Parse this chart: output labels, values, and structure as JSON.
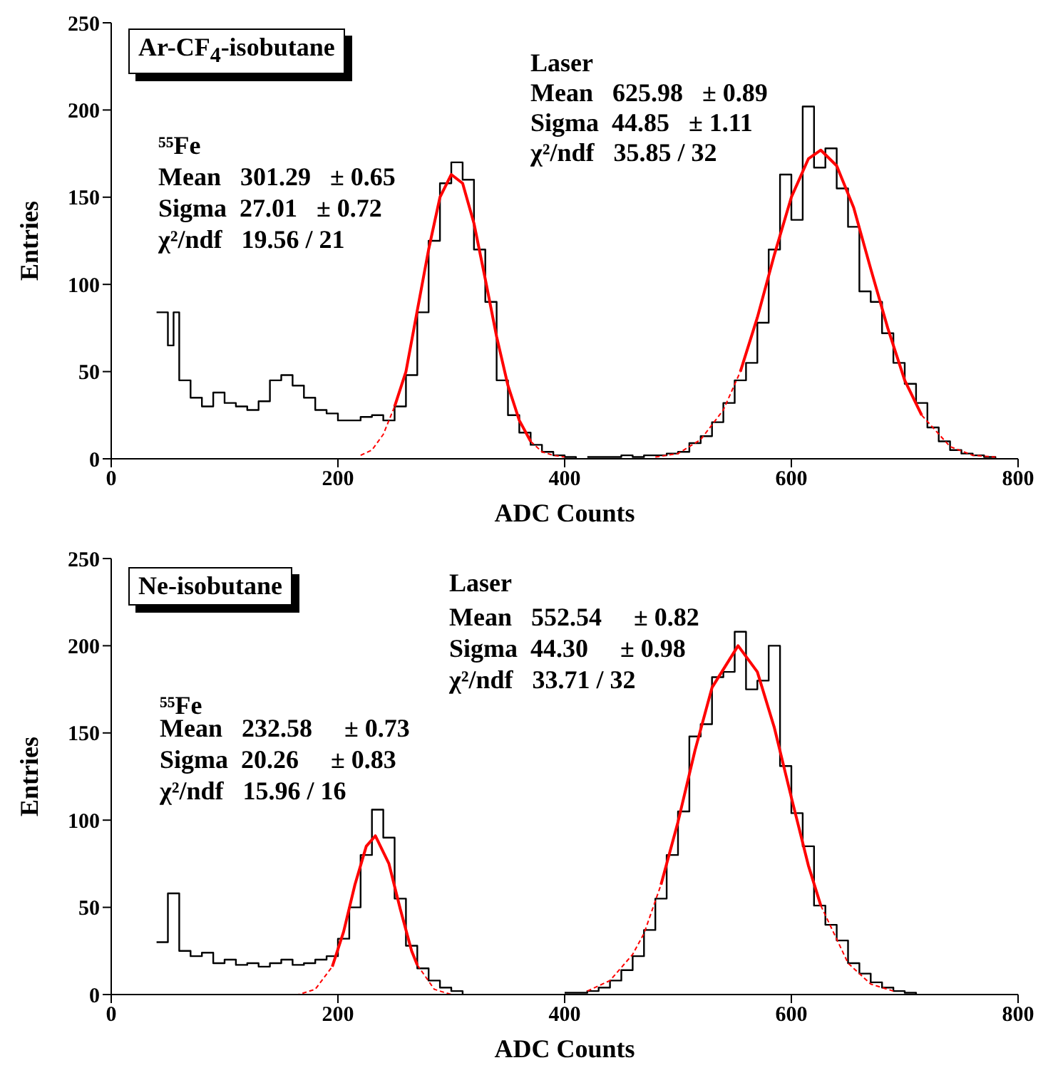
{
  "chart_data": [
    {
      "type": "step",
      "title": "Ar-CF$_{4}$-isobutane",
      "xlabel": "ADC Counts",
      "ylabel": "Entries",
      "xlim": [
        0,
        800
      ],
      "xticks": [
        0,
        200,
        400,
        600,
        800
      ],
      "ylim": [
        0,
        250
      ],
      "yticks": [
        0,
        50,
        100,
        150,
        200,
        250
      ],
      "annotations": [
        "⁵⁵Fe",
        "Mean   301.29   ± 0.65",
        "Sigma  27.01   ± 0.72",
        "χ²/ndf   19.56 / 21",
        "Laser",
        "Mean   625.98   ± 0.89",
        "Sigma  44.85   ± 1.11",
        "χ²/ndf   35.85 / 32"
      ],
      "series": [
        {
          "color": "#000000",
          "x": [
            40,
            50,
            55,
            60,
            70,
            80,
            90,
            100,
            110,
            120,
            130,
            140,
            150,
            160,
            170,
            180,
            190,
            200,
            210,
            220,
            230,
            240,
            250,
            260,
            270,
            280,
            290,
            300,
            310,
            320,
            330,
            340,
            350,
            360,
            370,
            380,
            390,
            400,
            410
          ],
          "values": [
            84,
            65,
            84,
            45,
            35,
            30,
            38,
            32,
            30,
            28,
            33,
            45,
            48,
            42,
            35,
            28,
            26,
            22,
            22,
            24,
            25,
            22,
            30,
            48,
            84,
            125,
            158,
            170,
            160,
            120,
            90,
            45,
            25,
            15,
            8,
            4,
            2,
            1,
            0
          ]
        },
        {
          "color": "#000000",
          "x": [
            420,
            430,
            440,
            450,
            460,
            470,
            480,
            490,
            500,
            510,
            520,
            530,
            540,
            550,
            560,
            570,
            580,
            590,
            600,
            610,
            620,
            630,
            640,
            650,
            660,
            670,
            680,
            690,
            700,
            710,
            720,
            730,
            740,
            750,
            760,
            770,
            780
          ],
          "values": [
            1,
            1,
            1,
            2,
            1,
            2,
            2,
            3,
            4,
            9,
            13,
            21,
            32,
            45,
            55,
            78,
            120,
            163,
            137,
            202,
            167,
            178,
            155,
            133,
            96,
            90,
            72,
            55,
            43,
            32,
            18,
            10,
            5,
            3,
            2,
            1,
            0
          ]
        },
        {
          "type": "line",
          "color": "#ff0000",
          "x": [
            250,
            260,
            270,
            280,
            290,
            300,
            310,
            320,
            330,
            340,
            350,
            360,
            370
          ],
          "values": [
            30,
            50,
            85,
            120,
            150,
            163,
            158,
            135,
            103,
            70,
            42,
            22,
            10
          ]
        },
        {
          "type": "line",
          "color": "#ff0000",
          "line_style": "dashed",
          "x": [
            220,
            230,
            240,
            250
          ],
          "values": [
            2,
            5,
            14,
            30
          ]
        },
        {
          "type": "line",
          "color": "#ff0000",
          "line_style": "dashed",
          "x": [
            370,
            380,
            390,
            400
          ],
          "values": [
            10,
            4,
            2,
            1
          ]
        },
        {
          "type": "line",
          "color": "#ff0000",
          "x": [
            555,
            570,
            585,
            600,
            615,
            626,
            640,
            655,
            670,
            685,
            700,
            715
          ],
          "values": [
            50,
            81,
            117,
            150,
            172,
            177,
            168,
            144,
            109,
            75,
            45,
            25
          ]
        },
        {
          "type": "line",
          "color": "#ff0000",
          "line_style": "dashed",
          "x": [
            480,
            500,
            520,
            540,
            555
          ],
          "values": [
            1,
            3,
            11,
            28,
            50
          ]
        },
        {
          "type": "line",
          "color": "#ff0000",
          "line_style": "dashed",
          "x": [
            715,
            740,
            760,
            780
          ],
          "values": [
            25,
            7,
            2,
            1
          ]
        }
      ]
    },
    {
      "type": "step",
      "title": "Ne-isobutane",
      "xlabel": "ADC Counts",
      "ylabel": "Entries",
      "xlim": [
        0,
        800
      ],
      "xticks": [
        0,
        200,
        400,
        600,
        800
      ],
      "ylim": [
        0,
        250
      ],
      "yticks": [
        0,
        50,
        100,
        150,
        200,
        250
      ],
      "annotations": [
        "⁵⁵Fe",
        "Mean   232.58     ± 0.73",
        "Sigma  20.26     ± 0.83",
        "χ²/ndf   15.96 / 16",
        "Laser",
        "Mean   552.54     ± 0.82",
        "Sigma  44.30     ± 0.98",
        "χ²/ndf   33.71 / 32"
      ],
      "series": [
        {
          "color": "#000000",
          "x": [
            40,
            50,
            60,
            70,
            80,
            90,
            100,
            110,
            120,
            130,
            140,
            150,
            160,
            170,
            180,
            190,
            200,
            210,
            220,
            230,
            240,
            250,
            260,
            270,
            280,
            290,
            300,
            310
          ],
          "values": [
            30,
            58,
            25,
            22,
            24,
            18,
            20,
            17,
            18,
            16,
            18,
            20,
            17,
            18,
            20,
            22,
            32,
            50,
            80,
            106,
            90,
            55,
            28,
            15,
            8,
            4,
            2,
            0
          ]
        },
        {
          "color": "#000000",
          "x": [
            400,
            410,
            420,
            430,
            440,
            450,
            460,
            470,
            480,
            490,
            500,
            510,
            520,
            530,
            540,
            550,
            560,
            570,
            580,
            590,
            600,
            610,
            620,
            630,
            640,
            650,
            660,
            670,
            680,
            690,
            700,
            710
          ],
          "values": [
            1,
            1,
            2,
            4,
            8,
            14,
            22,
            37,
            55,
            80,
            105,
            148,
            155,
            182,
            185,
            208,
            175,
            180,
            200,
            131,
            104,
            85,
            51,
            40,
            31,
            18,
            12,
            7,
            4,
            2,
            1,
            0
          ]
        },
        {
          "type": "line",
          "color": "#ff0000",
          "x": [
            195,
            205,
            215,
            225,
            233,
            245,
            255,
            265,
            270
          ],
          "values": [
            16,
            36,
            63,
            85,
            91,
            75,
            49,
            25,
            17
          ]
        },
        {
          "type": "line",
          "color": "#ff0000",
          "line_style": "dashed",
          "x": [
            150,
            165,
            180,
            195
          ],
          "values": [
            0,
            0,
            3,
            16
          ]
        },
        {
          "type": "line",
          "color": "#ff0000",
          "line_style": "dashed",
          "x": [
            270,
            285,
            300
          ],
          "values": [
            17,
            3,
            0
          ]
        },
        {
          "type": "line",
          "color": "#ff0000",
          "x": [
            485,
            500,
            515,
            530,
            553,
            570,
            585,
            600,
            615,
            626
          ],
          "values": [
            63,
            99,
            140,
            176,
            200,
            185,
            153,
            113,
            74,
            51
          ]
        },
        {
          "type": "line",
          "color": "#ff0000",
          "line_style": "dashed",
          "x": [
            420,
            440,
            460,
            470,
            485
          ],
          "values": [
            2,
            8,
            23,
            35,
            63
          ]
        },
        {
          "type": "line",
          "color": "#ff0000",
          "line_style": "dashed",
          "x": [
            626,
            650,
            670,
            690
          ],
          "values": [
            51,
            18,
            6,
            2
          ]
        }
      ]
    }
  ]
}
